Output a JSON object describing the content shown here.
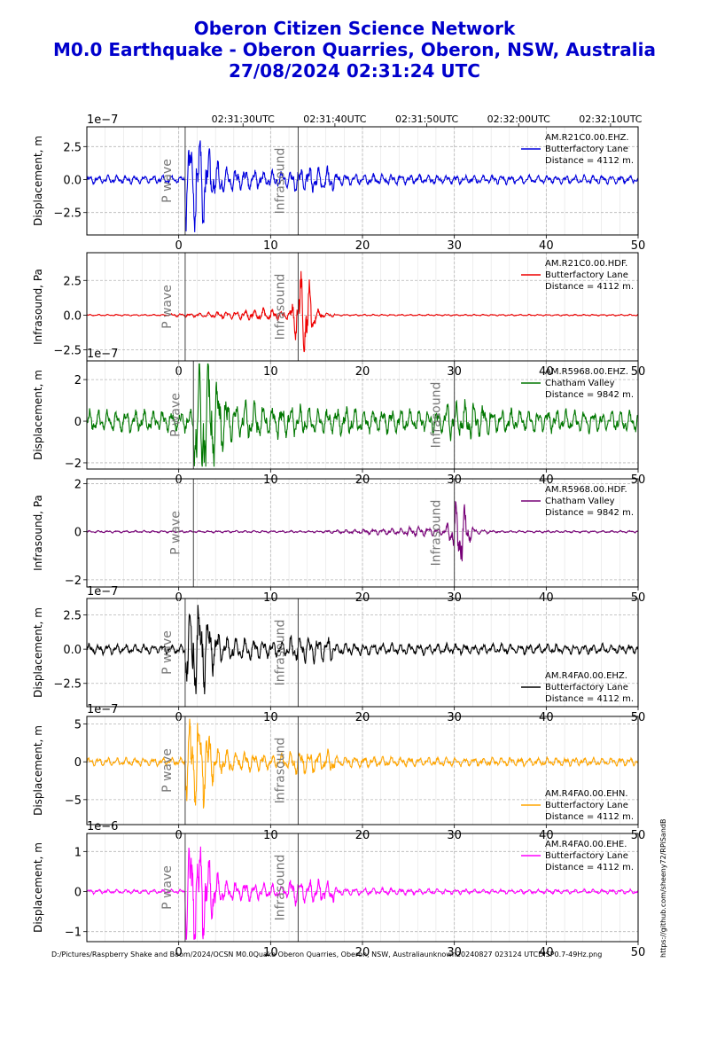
{
  "title": {
    "line1": "Oberon Citizen Science Network",
    "line2": "M0.0 Earthquake - Oberon Quarries, Oberon, NSW, Australia",
    "line3": "27/08/2024 02:31:24 UTC"
  },
  "footer_path": "D:/Pictures/Raspberry Shake and Boom/2024/OCSN M0.0Quake Oberon Quarries, Oberon, NSW, Australiaunknown20240827 023124 UTCDISP0.7-49Hz.png",
  "side_url": "https://github.com/sheeny72/RPiSandB",
  "utc_ticks": [
    "02:31:30UTC",
    "02:31:40UTC",
    "02:31:50UTC",
    "02:32:00UTC",
    "02:32:10UTC"
  ],
  "chart_data": {
    "type": "line",
    "x_range": [
      -10,
      50
    ],
    "x_ticks": [
      0,
      10,
      20,
      30,
      40,
      50
    ],
    "grid": true,
    "panels": [
      {
        "ylabel": "Displacement, m",
        "multiplier": "1e−7",
        "ylim": [
          -4.2,
          4.0
        ],
        "yticks": [
          "2.5",
          "0.0",
          "−2.5"
        ],
        "ytick_values": [
          2.5,
          0,
          -2.5
        ],
        "color": "#0000dd",
        "legend": [
          "AM.R21C0.00.EHZ.",
          "Butterfactory Lane",
          "Distance = 4112 m."
        ],
        "legend_pos": "top-right",
        "p_wave": 0.7,
        "infrasound": 13.0,
        "peak": 3.6,
        "bg": 0.35
      },
      {
        "ylabel": "Infrasound, Pa",
        "multiplier": "",
        "ylim": [
          -3.3,
          4.5
        ],
        "yticks": [
          "2.5",
          "0.0",
          "−2.5"
        ],
        "ytick_values": [
          2.5,
          0,
          -2.5
        ],
        "color": "#ee0000",
        "legend": [
          "AM.R21C0.00.HDF.",
          "Butterfactory Lane",
          "Distance = 4112 m."
        ],
        "legend_pos": "top-right",
        "p_wave": 0.7,
        "infrasound": 13.0,
        "peak": 4.0,
        "bg": 0.06
      },
      {
        "ylabel": "Displacement, m",
        "multiplier": "1e−7",
        "ylim": [
          -2.3,
          2.9
        ],
        "yticks": [
          "2",
          "0",
          "−2"
        ],
        "ytick_values": [
          2,
          0,
          -2
        ],
        "color": "#007700",
        "legend": [
          "AM.R5968.00.EHZ.",
          "Chatham Valley",
          "Distance = 9842 m."
        ],
        "legend_pos": "top-right",
        "p_wave": 1.6,
        "infrasound": 30.0,
        "peak": 2.6,
        "bg": 0.6
      },
      {
        "ylabel": "Infrasound, Pa",
        "multiplier": "",
        "ylim": [
          -2.3,
          2.2
        ],
        "yticks": [
          "2",
          "0",
          "−2"
        ],
        "ytick_values": [
          2,
          0,
          -2
        ],
        "color": "#770077",
        "legend": [
          "AM.R5968.00.HDF.",
          "Chatham Valley",
          "Distance = 9842 m."
        ],
        "legend_pos": "top-right",
        "p_wave": 1.6,
        "infrasound": 30.0,
        "peak": 1.6,
        "bg": 0.05
      },
      {
        "ylabel": "Displacement, m",
        "multiplier": "1e−7",
        "ylim": [
          -4.2,
          3.7
        ],
        "yticks": [
          "2.5",
          "0.0",
          "−2.5"
        ],
        "ytick_values": [
          2.5,
          0,
          -2.5
        ],
        "color": "#000000",
        "legend": [
          "AM.R4FA0.00.EHZ.",
          "Butterfactory Lane",
          "Distance = 4112 m."
        ],
        "legend_pos": "bottom-right",
        "p_wave": 0.7,
        "infrasound": 13.0,
        "peak": 3.0,
        "bg": 0.4
      },
      {
        "ylabel": "Displacement, m",
        "multiplier": "1e−7",
        "ylim": [
          -8.3,
          6.0
        ],
        "yticks": [
          "5",
          "0",
          "−5"
        ],
        "ytick_values": [
          5,
          0,
          -5
        ],
        "color": "#ffa500",
        "legend": [
          "AM.R4FA0.00.EHN.",
          "Butterfactory Lane",
          "Distance = 4112 m."
        ],
        "legend_pos": "bottom-right",
        "p_wave": 0.7,
        "infrasound": 13.0,
        "peak": 5.5,
        "bg": 0.6
      },
      {
        "ylabel": "Displacement, m",
        "multiplier": "1e−6",
        "ylim": [
          -1.25,
          1.45
        ],
        "yticks": [
          "1",
          "0",
          "−1"
        ],
        "ytick_values": [
          1,
          0,
          -1
        ],
        "color": "#ff00ff",
        "legend": [
          "AM.R4FA0.00.EHE.",
          "Butterfactory Lane",
          "Distance = 4112 m."
        ],
        "legend_pos": "top-right",
        "p_wave": 0.7,
        "infrasound": 13.0,
        "peak": 1.3,
        "bg": 0.06
      }
    ],
    "annotations": {
      "p_wave": "P wave",
      "infrasound": "Infrasound"
    }
  }
}
